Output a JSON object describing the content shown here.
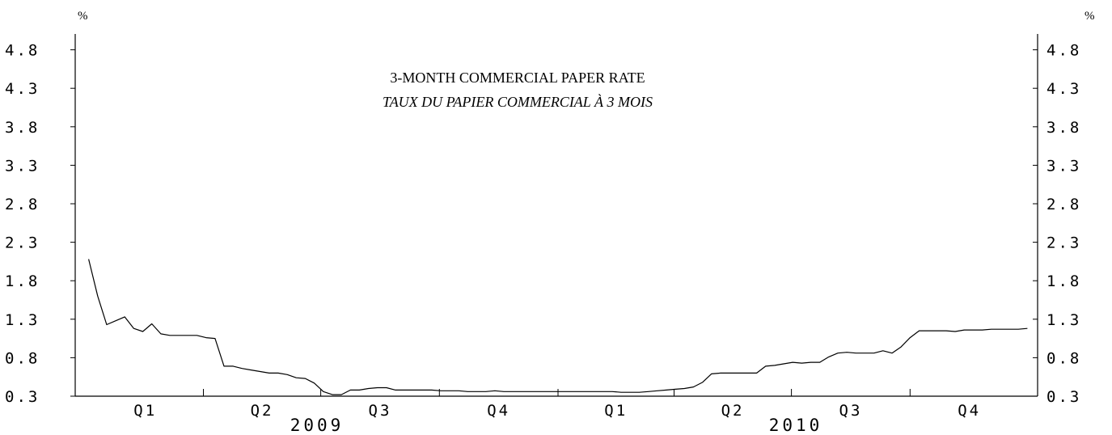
{
  "chart_data": {
    "type": "line",
    "title": "3-MONTH COMMERCIAL PAPER RATE",
    "subtitle": "TAUX DU PAPIER COMMERCIAL À 3 MOIS",
    "y_unit_left": "%",
    "y_unit_right": "%",
    "ylim": [
      0.3,
      5.0
    ],
    "y_ticks": [
      "0.3",
      "0.8",
      "1.3",
      "1.8",
      "2.3",
      "2.8",
      "3.3",
      "3.8",
      "4.3",
      "4.8"
    ],
    "x_quarter_labels": [
      "Q1",
      "Q2",
      "Q3",
      "Q4",
      "Q1",
      "Q2",
      "Q3",
      "Q4"
    ],
    "years": [
      "2009",
      "2010"
    ],
    "grid": false,
    "series": [
      {
        "x": [
          "2009-01-02",
          "2009-01-09",
          "2009-01-16",
          "2009-01-23",
          "2009-01-30",
          "2009-02-06",
          "2009-02-13",
          "2009-02-20",
          "2009-02-27",
          "2009-03-06",
          "2009-03-13",
          "2009-03-20",
          "2009-03-27",
          "2009-04-03",
          "2009-04-10",
          "2009-04-17",
          "2009-04-24",
          "2009-05-01",
          "2009-05-08",
          "2009-05-15",
          "2009-05-22",
          "2009-05-29",
          "2009-06-05",
          "2009-06-12",
          "2009-06-19",
          "2009-06-26",
          "2009-07-03",
          "2009-07-10",
          "2009-07-17",
          "2009-07-24",
          "2009-07-31",
          "2009-08-07",
          "2009-08-14",
          "2009-08-21",
          "2009-08-28",
          "2009-09-04",
          "2009-09-11",
          "2009-09-18",
          "2009-09-25",
          "2009-10-02",
          "2009-10-09",
          "2009-10-16",
          "2009-10-23",
          "2009-10-30",
          "2009-11-06",
          "2009-11-13",
          "2009-11-20",
          "2009-11-27",
          "2009-12-04",
          "2009-12-11",
          "2009-12-18",
          "2009-12-25",
          "2010-01-01",
          "2010-01-08",
          "2010-01-15",
          "2010-01-22",
          "2010-01-29",
          "2010-02-05",
          "2010-02-12",
          "2010-02-19",
          "2010-02-26",
          "2010-03-05",
          "2010-03-12",
          "2010-03-19",
          "2010-03-26",
          "2010-04-02",
          "2010-04-09",
          "2010-04-16",
          "2010-04-23",
          "2010-04-30",
          "2010-05-07",
          "2010-05-14",
          "2010-05-21",
          "2010-05-28",
          "2010-06-04",
          "2010-06-11",
          "2010-06-18",
          "2010-06-25",
          "2010-07-02",
          "2010-07-09",
          "2010-07-16",
          "2010-07-23",
          "2010-07-30",
          "2010-08-06",
          "2010-08-13",
          "2010-08-20",
          "2010-08-27",
          "2010-09-03",
          "2010-09-10",
          "2010-09-17",
          "2010-09-24",
          "2010-10-01",
          "2010-10-08",
          "2010-10-15",
          "2010-10-22",
          "2010-10-29",
          "2010-11-05",
          "2010-11-12",
          "2010-11-19",
          "2010-11-26",
          "2010-12-03",
          "2010-12-10",
          "2010-12-17",
          "2010-12-24",
          "2010-12-31"
        ],
        "values": [
          2.08,
          1.6,
          1.23,
          1.28,
          1.33,
          1.18,
          1.14,
          1.24,
          1.11,
          1.09,
          1.09,
          1.09,
          1.09,
          1.06,
          1.05,
          0.69,
          0.69,
          0.66,
          0.64,
          0.62,
          0.6,
          0.6,
          0.58,
          0.54,
          0.53,
          0.47,
          0.36,
          0.32,
          0.32,
          0.38,
          0.38,
          0.4,
          0.41,
          0.41,
          0.38,
          0.38,
          0.38,
          0.38,
          0.38,
          0.37,
          0.37,
          0.37,
          0.36,
          0.36,
          0.36,
          0.37,
          0.36,
          0.36,
          0.36,
          0.36,
          0.36,
          0.36,
          0.36,
          0.36,
          0.36,
          0.36,
          0.36,
          0.36,
          0.36,
          0.35,
          0.35,
          0.35,
          0.36,
          0.37,
          0.38,
          0.39,
          0.4,
          0.42,
          0.48,
          0.59,
          0.6,
          0.6,
          0.6,
          0.6,
          0.6,
          0.69,
          0.7,
          0.72,
          0.74,
          0.73,
          0.74,
          0.74,
          0.81,
          0.86,
          0.87,
          0.86,
          0.86,
          0.86,
          0.89,
          0.86,
          0.94,
          1.06,
          1.15,
          1.15,
          1.15,
          1.15,
          1.14,
          1.16,
          1.16,
          1.16,
          1.17,
          1.17,
          1.17,
          1.17,
          1.18
        ]
      }
    ]
  }
}
